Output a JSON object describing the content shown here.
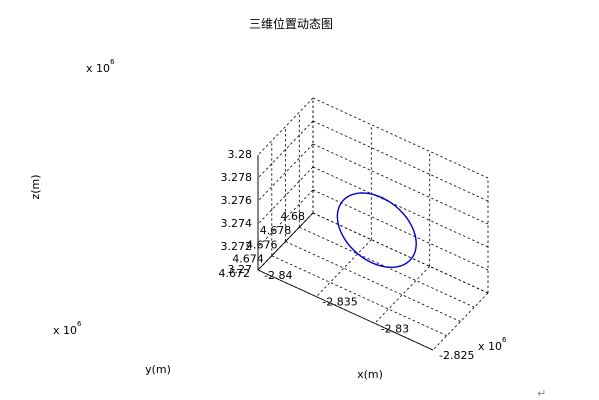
{
  "chart_data": {
    "type": "line",
    "title": "三维位置动态图",
    "xlabel": "x(m)",
    "ylabel": "y(m)",
    "zlabel": "z(m)",
    "x_exponent_label": "x 10",
    "y_exponent_label": "x 10",
    "z_exponent_label": "x 10",
    "exponent_power": "6",
    "xlim": [
      -2.84,
      -2.825
    ],
    "ylim": [
      4.672,
      4.68
    ],
    "zlim": [
      3.27,
      3.28
    ],
    "x_ticks": [
      -2.84,
      -2.835,
      -2.83,
      -2.825
    ],
    "y_ticks": [
      4.672,
      4.674,
      4.676,
      4.678,
      4.68
    ],
    "z_ticks": [
      3.27,
      3.272,
      3.274,
      3.276,
      3.278,
      3.28
    ],
    "x_tick_labels": [
      "-2.84",
      "-2.835",
      "-2.83",
      "-2.825"
    ],
    "y_tick_labels": [
      "4.672",
      "4.674",
      "4.676",
      "4.678",
      "4.68"
    ],
    "z_tick_labels": [
      "3.27",
      "3.272",
      "3.274",
      "3.276",
      "3.278",
      "3.28"
    ],
    "grid": true,
    "line_color": "#0000cc",
    "trajectory": {
      "shape": "closed ellipse",
      "x_range": [
        -2.8362,
        -2.8285
      ],
      "y_range": [
        4.6755,
        4.6771
      ],
      "z_range": [
        3.27115,
        3.27755
      ]
    }
  },
  "corner_mark": "↵"
}
